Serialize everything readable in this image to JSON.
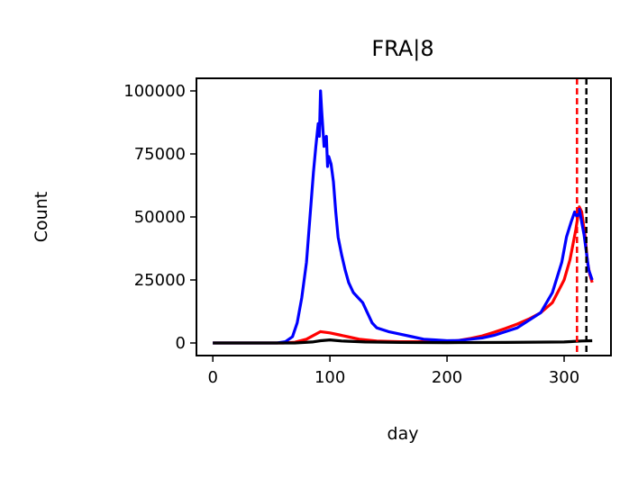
{
  "chart_data": {
    "type": "line",
    "title": "FRA|8",
    "xlabel": "day",
    "ylabel": "Count",
    "xlim": [
      -14,
      340
    ],
    "ylim": [
      -5000,
      105000
    ],
    "xticks": [
      0,
      100,
      200,
      300
    ],
    "yticks": [
      0,
      25000,
      50000,
      75000,
      100000
    ],
    "grid": false,
    "legend": "none",
    "series": [
      {
        "color": "#ff0000",
        "points": [
          [
            0,
            0
          ],
          [
            60,
            0
          ],
          [
            70,
            300
          ],
          [
            80,
            1500
          ],
          [
            88,
            3500
          ],
          [
            92,
            4500
          ],
          [
            100,
            4000
          ],
          [
            108,
            3200
          ],
          [
            115,
            2500
          ],
          [
            125,
            1500
          ],
          [
            140,
            800
          ],
          [
            160,
            500
          ],
          [
            180,
            500
          ],
          [
            200,
            600
          ],
          [
            210,
            1000
          ],
          [
            220,
            1800
          ],
          [
            230,
            2800
          ],
          [
            240,
            4200
          ],
          [
            250,
            5800
          ],
          [
            260,
            7500
          ],
          [
            270,
            9500
          ],
          [
            280,
            12000
          ],
          [
            290,
            16000
          ],
          [
            300,
            25000
          ],
          [
            305,
            33000
          ],
          [
            310,
            45000
          ],
          [
            313,
            54000
          ],
          [
            315,
            52000
          ],
          [
            318,
            42000
          ],
          [
            320,
            32000
          ],
          [
            322,
            27000
          ],
          [
            324,
            24000
          ]
        ]
      },
      {
        "color": "#0000ff",
        "points": [
          [
            0,
            0
          ],
          [
            55,
            0
          ],
          [
            62,
            500
          ],
          [
            68,
            2500
          ],
          [
            72,
            8000
          ],
          [
            76,
            18000
          ],
          [
            80,
            32000
          ],
          [
            83,
            50000
          ],
          [
            86,
            68000
          ],
          [
            88,
            78000
          ],
          [
            90,
            87000
          ],
          [
            91,
            82000
          ],
          [
            92,
            100000
          ],
          [
            93,
            92000
          ],
          [
            95,
            78000
          ],
          [
            97,
            82000
          ],
          [
            98,
            70000
          ],
          [
            99,
            74000
          ],
          [
            101,
            71000
          ],
          [
            103,
            64000
          ],
          [
            105,
            52000
          ],
          [
            107,
            42000
          ],
          [
            110,
            35000
          ],
          [
            113,
            29000
          ],
          [
            116,
            24000
          ],
          [
            120,
            20000
          ],
          [
            124,
            18000
          ],
          [
            128,
            16000
          ],
          [
            132,
            12000
          ],
          [
            136,
            8000
          ],
          [
            140,
            6000
          ],
          [
            150,
            4500
          ],
          [
            160,
            3500
          ],
          [
            170,
            2500
          ],
          [
            180,
            1500
          ],
          [
            190,
            1200
          ],
          [
            200,
            900
          ],
          [
            210,
            1000
          ],
          [
            220,
            1500
          ],
          [
            230,
            2000
          ],
          [
            240,
            3000
          ],
          [
            250,
            4500
          ],
          [
            260,
            6000
          ],
          [
            270,
            9000
          ],
          [
            280,
            12000
          ],
          [
            290,
            20000
          ],
          [
            298,
            32000
          ],
          [
            302,
            42000
          ],
          [
            306,
            48000
          ],
          [
            309,
            52000
          ],
          [
            311,
            50000
          ],
          [
            313,
            53000
          ],
          [
            315,
            48000
          ],
          [
            317,
            43000
          ],
          [
            319,
            36000
          ],
          [
            321,
            29000
          ],
          [
            324,
            25000
          ]
        ]
      },
      {
        "color": "#000000",
        "points": [
          [
            0,
            0
          ],
          [
            70,
            0
          ],
          [
            85,
            400
          ],
          [
            92,
            900
          ],
          [
            100,
            1200
          ],
          [
            110,
            800
          ],
          [
            130,
            400
          ],
          [
            160,
            200
          ],
          [
            200,
            150
          ],
          [
            250,
            200
          ],
          [
            300,
            400
          ],
          [
            315,
            800
          ],
          [
            324,
            900
          ]
        ]
      }
    ],
    "vlines": [
      {
        "x": 311,
        "color": "#ff0000",
        "style": "dashed"
      },
      {
        "x": 319,
        "color": "#000000",
        "style": "dashed"
      }
    ]
  }
}
